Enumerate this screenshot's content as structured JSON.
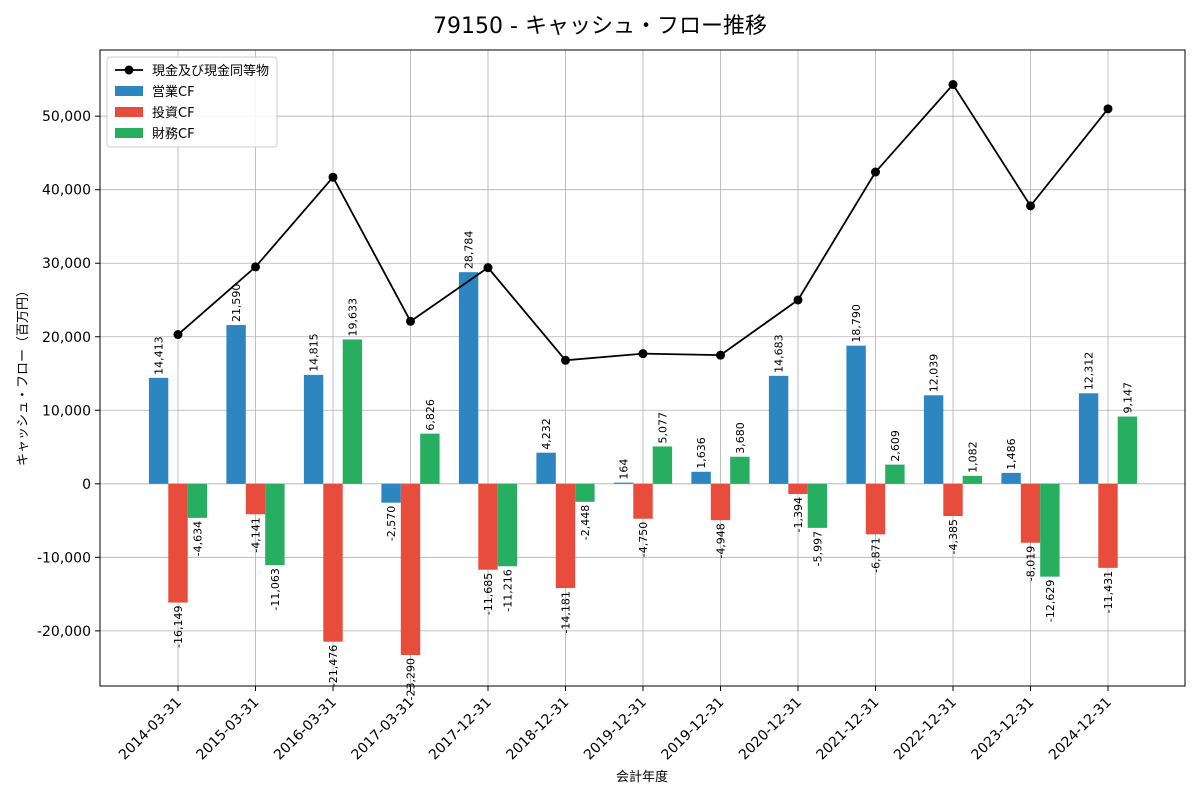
{
  "chart_data": {
    "type": "bar",
    "title": "79150 - キャッシュ・フロー推移",
    "xlabel": "会計年度",
    "ylabel": "キャッシュ・フロー（百万円）",
    "ylim": [
      -27500,
      59000
    ],
    "yticks": [
      -20000,
      -10000,
      0,
      10000,
      20000,
      30000,
      40000,
      50000
    ],
    "ytick_labels": [
      "-20,000",
      "-10,000",
      "0",
      "10,000",
      "20,000",
      "30,000",
      "40,000",
      "50,000"
    ],
    "grid": true,
    "legend_position": "top-left",
    "categories": [
      "2014-03-31",
      "2015-03-31",
      "2016-03-31",
      "2017-03-31",
      "2017-12-31",
      "2018-12-31",
      "2019-12-31",
      "2019-12-31",
      "2020-12-31",
      "2021-12-31",
      "2022-12-31",
      "2023-12-31",
      "2024-12-31"
    ],
    "series": [
      {
        "name": "営業CF",
        "kind": "bar",
        "color": "#2e86c1",
        "values": [
          14413,
          21590,
          14815,
          -2570,
          28784,
          4232,
          164,
          1636,
          14683,
          18790,
          12039,
          1486,
          12312
        ],
        "labels": [
          "14,413",
          "21,590",
          "14,815",
          "-2,570",
          "28,784",
          "4,232",
          "164",
          "1,636",
          "14,683",
          "18,790",
          "12,039",
          "1,486",
          "12,312"
        ]
      },
      {
        "name": "投資CF",
        "kind": "bar",
        "color": "#e74c3c",
        "values": [
          -16149,
          -4141,
          -21476,
          -23290,
          -11685,
          -14181,
          -4750,
          -4948,
          -1394,
          -6871,
          -4385,
          -8019,
          -11431
        ],
        "labels": [
          "-16,149",
          "-4,141",
          "-21,476",
          "-23,290",
          "-11,685",
          "-14,181",
          "-4,750",
          "-4,948",
          "-1,394",
          "-6,871",
          "-4,385",
          "-8,019",
          "-11,431"
        ]
      },
      {
        "name": "財務CF",
        "kind": "bar",
        "color": "#27ae60",
        "values": [
          -4634,
          -11063,
          19633,
          6826,
          -11216,
          -2448,
          5077,
          3680,
          -5997,
          2609,
          1082,
          -12629,
          9147
        ],
        "labels": [
          "-4,634",
          "-11,063",
          "19,633",
          "6,826",
          "-11,216",
          "-2,448",
          "5,077",
          "3,680",
          "-5,997",
          "2,609",
          "1,082",
          "-12,629",
          "9,147"
        ]
      },
      {
        "name": "現金及び現金同等物",
        "kind": "line",
        "color": "#000000",
        "values": [
          20300,
          29500,
          41700,
          22100,
          29400,
          16800,
          17700,
          17500,
          25000,
          42400,
          54300,
          37800,
          51000
        ]
      }
    ]
  }
}
